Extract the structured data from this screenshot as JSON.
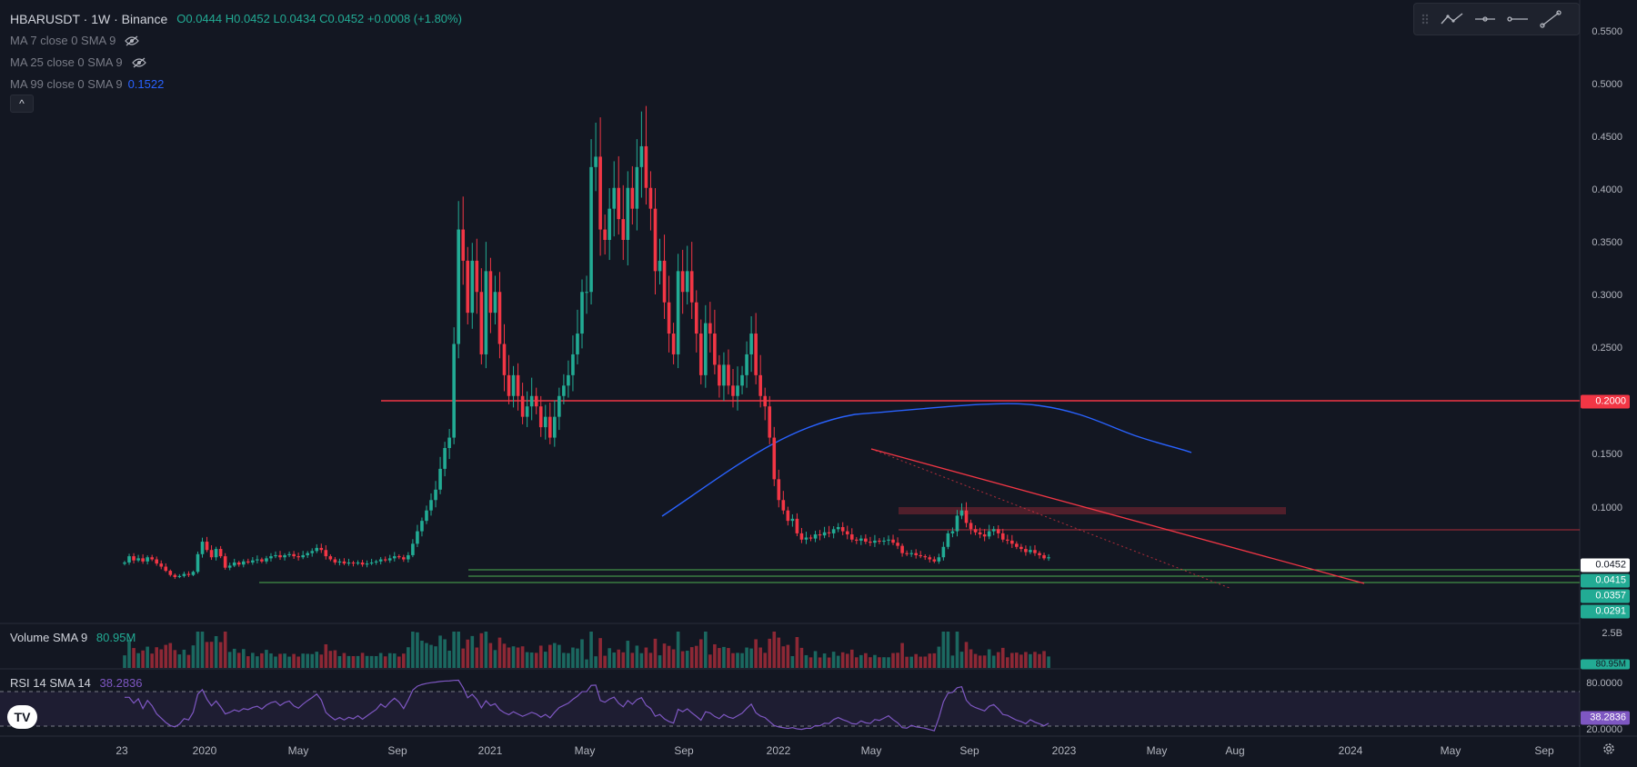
{
  "legend": {
    "symbol": "HBARUSDT · 1W · Binance",
    "ohlc": "O0.0444 H0.0452 L0.0434 C0.0452 +0.0008 (+1.80%)",
    "ma": [
      {
        "label": "MA 7 close 0 SMA 9",
        "value": "",
        "hidden": true
      },
      {
        "label": "MA 25 close 0 SMA 9",
        "value": "",
        "hidden": true
      },
      {
        "label": "MA 99 close 0 SMA 9",
        "value": "0.1522",
        "hidden": false
      }
    ],
    "collapse_glyph": "^"
  },
  "toolbar": {
    "buttons": [
      "drag-handle-icon",
      "trend-chart-icon",
      "horizontal-ray-icon",
      "horizontal-line-icon",
      "trend-line-icon"
    ]
  },
  "volume": {
    "label": "Volume SMA 9",
    "value": "80.95M",
    "axis_label": "2.5B",
    "tag": "80.95M"
  },
  "rsi": {
    "label": "RSI 14 SMA 14",
    "value": "38.2836",
    "levels": [
      "80.0000",
      "20.0000"
    ],
    "tag": "38.2836"
  },
  "price_axis": [
    "0.5500",
    "0.5000",
    "0.4500",
    "0.4000",
    "0.3500",
    "0.3000",
    "0.2500",
    "0.1500",
    "0.1000"
  ],
  "price_tags": [
    {
      "text": "0.2000",
      "bg": "#f23645",
      "fg": "#ffffff"
    },
    {
      "text": "0.0452",
      "bg": "#ffffff",
      "fg": "#131722"
    },
    {
      "text": "0.0415",
      "bg": "#22ab94",
      "fg": "#ffffff"
    },
    {
      "text": "0.0357",
      "bg": "#22ab94",
      "fg": "#ffffff"
    },
    {
      "text": "0.0291",
      "bg": "#22ab94",
      "fg": "#ffffff"
    }
  ],
  "time_axis": [
    "23",
    "2020",
    "May",
    "Sep",
    "2021",
    "May",
    "Sep",
    "2022",
    "May",
    "Sep",
    "2023",
    "May",
    "Aug",
    "2024",
    "May",
    "Sep"
  ],
  "logo": "TV",
  "colors": {
    "background": "#131722",
    "up": "#22ab94",
    "down": "#f23645",
    "ma99": "#2962ff",
    "rsi": "#7e57c2",
    "support": "#4caf50"
  },
  "chart_data": {
    "type": "candlestick",
    "symbol": "HBARUSDT",
    "interval": "1W",
    "price_range": [
      0.015,
      0.58
    ],
    "horizontal_lines": [
      0.2,
      0.0415,
      0.0357,
      0.0291
    ],
    "resistance_zone": [
      0.092,
      0.098
    ],
    "ma99_last": 0.1522,
    "rsi_last": 38.2836,
    "volume_sma_last": "80.95M",
    "last_close": 0.0452,
    "closes": [
      0.04,
      0.046,
      0.042,
      0.044,
      0.041,
      0.045,
      0.043,
      0.039,
      0.036,
      0.032,
      0.028,
      0.026,
      0.027,
      0.029,
      0.028,
      0.031,
      0.048,
      0.06,
      0.052,
      0.045,
      0.053,
      0.046,
      0.035,
      0.037,
      0.04,
      0.038,
      0.041,
      0.04,
      0.042,
      0.043,
      0.041,
      0.044,
      0.046,
      0.047,
      0.045,
      0.047,
      0.048,
      0.046,
      0.045,
      0.047,
      0.049,
      0.051,
      0.054,
      0.052,
      0.046,
      0.043,
      0.04,
      0.041,
      0.039,
      0.04,
      0.039,
      0.04,
      0.038,
      0.039,
      0.04,
      0.041,
      0.043,
      0.042,
      0.044,
      0.046,
      0.045,
      0.043,
      0.047,
      0.058,
      0.07,
      0.08,
      0.09,
      0.1,
      0.11,
      0.13,
      0.15,
      0.16,
      0.25,
      0.36,
      0.33,
      0.28,
      0.33,
      0.3,
      0.24,
      0.32,
      0.28,
      0.3,
      0.25,
      0.22,
      0.2,
      0.22,
      0.2,
      0.18,
      0.19,
      0.2,
      0.19,
      0.17,
      0.18,
      0.16,
      0.18,
      0.2,
      0.21,
      0.22,
      0.24,
      0.26,
      0.3,
      0.3,
      0.42,
      0.43,
      0.36,
      0.35,
      0.38,
      0.4,
      0.37,
      0.35,
      0.4,
      0.38,
      0.42,
      0.44,
      0.4,
      0.38,
      0.32,
      0.33,
      0.29,
      0.26,
      0.24,
      0.32,
      0.3,
      0.32,
      0.29,
      0.26,
      0.22,
      0.27,
      0.26,
      0.23,
      0.21,
      0.23,
      0.21,
      0.2,
      0.21,
      0.22,
      0.24,
      0.26,
      0.22,
      0.2,
      0.19,
      0.16,
      0.12,
      0.1,
      0.09,
      0.08,
      0.082,
      0.068,
      0.062,
      0.064,
      0.063,
      0.067,
      0.066,
      0.069,
      0.068,
      0.072,
      0.074,
      0.07,
      0.067,
      0.062,
      0.061,
      0.063,
      0.06,
      0.059,
      0.061,
      0.06,
      0.061,
      0.062,
      0.059,
      0.056,
      0.049,
      0.048,
      0.049,
      0.047,
      0.046,
      0.045,
      0.043,
      0.041,
      0.045,
      0.055,
      0.068,
      0.07,
      0.085,
      0.09,
      0.078,
      0.072,
      0.069,
      0.067,
      0.065,
      0.07,
      0.072,
      0.068,
      0.062,
      0.061,
      0.058,
      0.055,
      0.053,
      0.05,
      0.052,
      0.049,
      0.047,
      0.044,
      0.045
    ]
  }
}
